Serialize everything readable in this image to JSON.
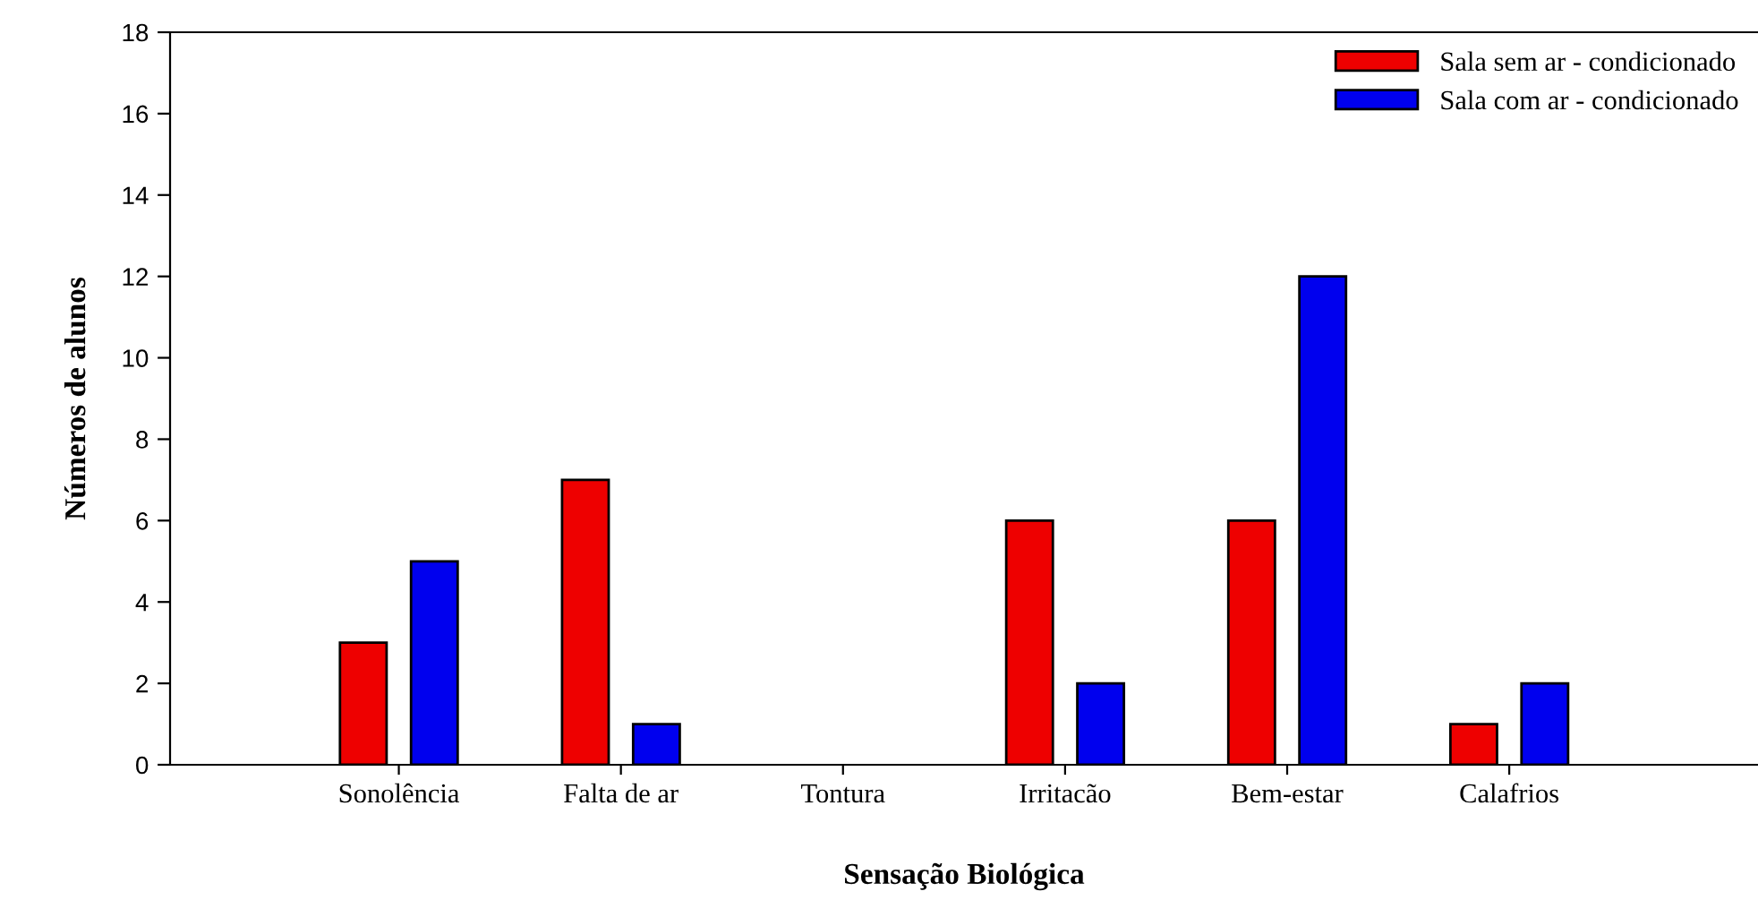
{
  "chart_data": {
    "type": "bar",
    "xlabel": "Sensação Biológica",
    "ylabel": "Números de alunos",
    "categories": [
      "Sonolência",
      "Falta de ar",
      "Tontura",
      "Irritacão",
      "Bem-estar",
      "Calafrios"
    ],
    "series": [
      {
        "name": "Sala sem ar - condicionado",
        "color": "#ee0000",
        "values": [
          3,
          7,
          0,
          6,
          6,
          1
        ]
      },
      {
        "name": "Sala com ar - condicionado",
        "color": "#0000ee",
        "values": [
          5,
          1,
          0,
          2,
          12,
          2
        ]
      }
    ],
    "ylim": [
      0,
      18
    ],
    "yticks": [
      0,
      2,
      4,
      6,
      8,
      10,
      12,
      14,
      16,
      18
    ],
    "grid": false,
    "legend": "top right"
  }
}
